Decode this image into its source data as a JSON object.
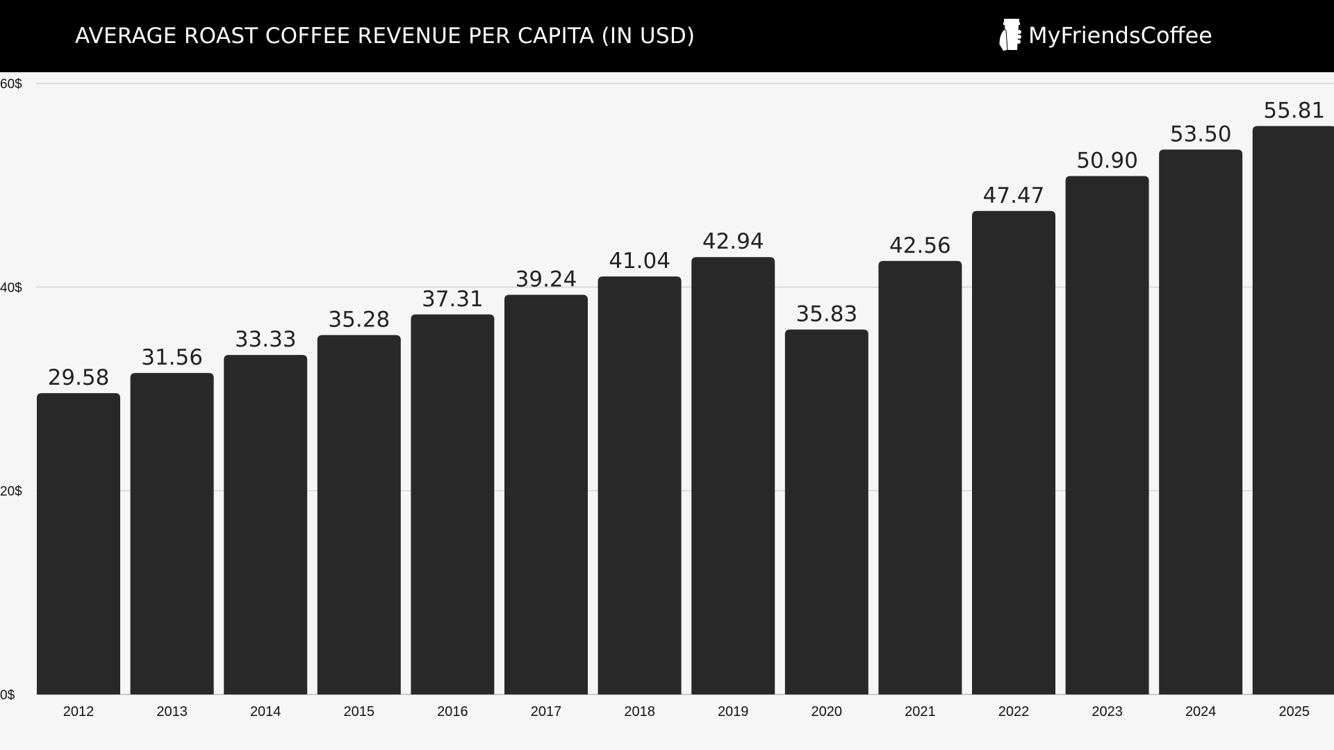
{
  "header": {
    "title": "AVERAGE ROAST COFFEE REVENUE PER CAPITA (IN USD)",
    "logo_text": "MyFriendsCoffee"
  },
  "chart_data": {
    "type": "bar",
    "title": "AVERAGE ROAST COFFEE REVENUE PER CAPITA (IN USD)",
    "categories": [
      "2012",
      "2013",
      "2014",
      "2015",
      "2016",
      "2017",
      "2018",
      "2019",
      "2020",
      "2021",
      "2022",
      "2023",
      "2024",
      "2025"
    ],
    "values": [
      29.58,
      31.56,
      33.33,
      35.28,
      37.31,
      39.24,
      41.04,
      42.94,
      35.83,
      42.56,
      47.47,
      50.9,
      53.5,
      55.81
    ],
    "value_labels": [
      "29.58",
      "31.56",
      "33.33",
      "35.28",
      "37.31",
      "39.24",
      "41.04",
      "42.94",
      "35.83",
      "42.56",
      "47.47",
      "50.90",
      "53.50",
      "55.81"
    ],
    "yticks": [
      0,
      20,
      40,
      60
    ],
    "ytick_labels": [
      "0$",
      "20$",
      "40$",
      "60$"
    ],
    "ylim": [
      0,
      60
    ],
    "grid": true,
    "bar_color": "#282828",
    "xlabel": "",
    "ylabel": ""
  }
}
